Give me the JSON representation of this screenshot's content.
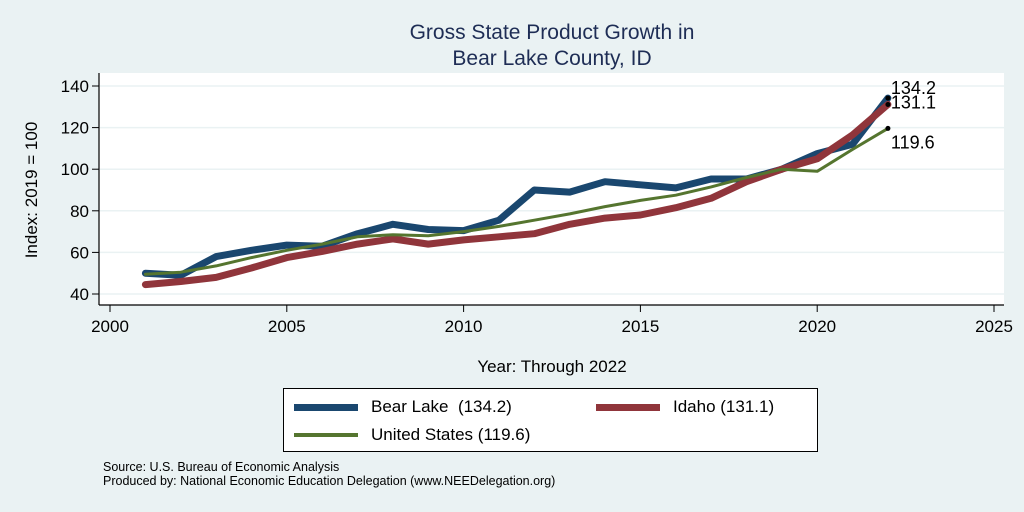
{
  "chart_data": {
    "type": "line",
    "title": [
      "Gross State Product Growth in",
      "Bear Lake County, ID"
    ],
    "xlabel": "Year: Through 2022",
    "ylabel": "Index: 2019 = 100",
    "xlim": [
      2000,
      2025
    ],
    "ylim": [
      40,
      140
    ],
    "xticks": [
      2000,
      2005,
      2010,
      2015,
      2020,
      2025
    ],
    "yticks": [
      40,
      60,
      80,
      100,
      120,
      140
    ],
    "grid": true,
    "legend_position": "bottom",
    "x": [
      2001,
      2002,
      2003,
      2004,
      2005,
      2006,
      2007,
      2008,
      2009,
      2010,
      2011,
      2012,
      2013,
      2014,
      2015,
      2016,
      2017,
      2018,
      2019,
      2020,
      2021,
      2022
    ],
    "series": [
      {
        "name": "Bear Lake",
        "legend_label": "Bear Lake  (134.2)",
        "color": "#1a476f",
        "end_label": "134.2",
        "values": [
          50,
          49,
          58,
          61,
          63.5,
          63,
          69,
          73.5,
          71,
          70.5,
          75.5,
          90,
          89,
          94,
          92.5,
          91,
          95.3,
          95.3,
          100,
          107.5,
          112,
          134.2
        ]
      },
      {
        "name": "Idaho",
        "legend_label": "Idaho (131.1)",
        "color": "#90353b",
        "end_label": "131.1",
        "values": [
          44.5,
          46,
          48,
          52.5,
          57.5,
          60.5,
          64,
          66.5,
          64,
          66,
          67.5,
          69,
          73.5,
          76.5,
          78,
          81.5,
          86,
          94,
          100,
          105,
          116.5,
          131.1
        ]
      },
      {
        "name": "United States",
        "legend_label": "United States (119.6)",
        "color": "#55752f",
        "end_label": "119.6",
        "values": [
          49.5,
          50.5,
          53.5,
          57.5,
          61,
          64,
          67.5,
          68.5,
          68,
          70,
          72.5,
          75.5,
          78.5,
          82,
          85,
          87.5,
          91.5,
          96,
          100,
          99,
          109.5,
          119.6
        ]
      }
    ]
  },
  "footer": {
    "source": "Source: U.S. Bureau of Economic Analysis",
    "produced_by": "Produced by: National Economic Education Delegation (www.NEEDelegation.org)"
  }
}
